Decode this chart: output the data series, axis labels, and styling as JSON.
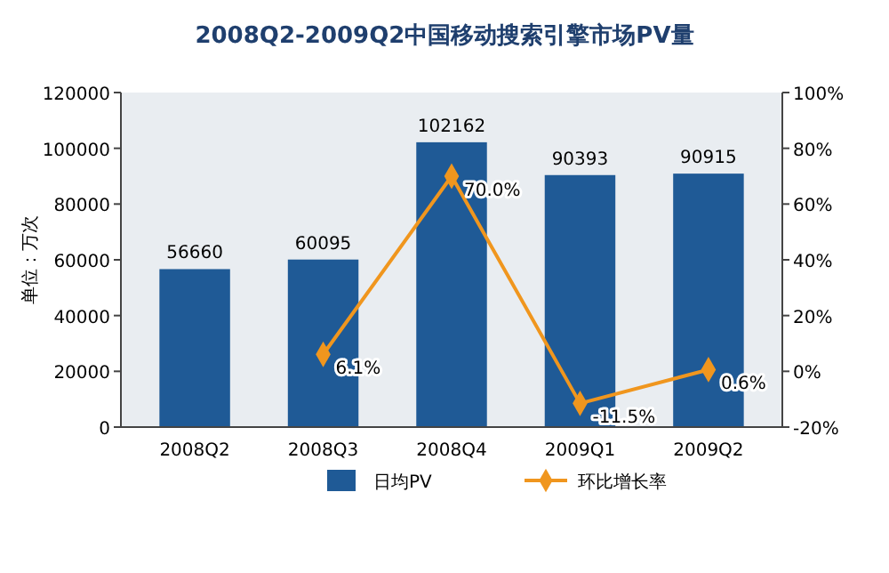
{
  "chart_data": {
    "type": "bar",
    "title": "2008Q2-2009Q2中国移动搜索引擎市场PV量",
    "ylabel": "单位：万次",
    "categories": [
      "2008Q2",
      "2008Q3",
      "2008Q4",
      "2009Q1",
      "2009Q2"
    ],
    "series": [
      {
        "name": "日均PV",
        "color": "#1f5a96",
        "values": [
          56660,
          60095,
          102162,
          90393,
          90915
        ],
        "value_labels": [
          "56660",
          "60095",
          "102162",
          "90393",
          "90915"
        ]
      },
      {
        "name": "环比增长率",
        "type": "line",
        "axis": "y2",
        "color": "#f0961e",
        "marker": "diamond",
        "values": [
          null,
          6.1,
          70.0,
          -11.5,
          0.6
        ],
        "value_labels": [
          null,
          "6.1%",
          "70.0%",
          "-11.5%",
          "0.6%"
        ]
      }
    ],
    "ylim": [
      0,
      120000
    ],
    "yticks": [
      0,
      20000,
      40000,
      60000,
      80000,
      100000,
      120000
    ],
    "y2lim": [
      -20,
      100
    ],
    "y2ticks": [
      {
        "value": -20,
        "label": "-20%"
      },
      {
        "value": 0,
        "label": "0%"
      },
      {
        "value": 20,
        "label": "20%"
      },
      {
        "value": 40,
        "label": "40%"
      },
      {
        "value": 60,
        "label": "60%"
      },
      {
        "value": 80,
        "label": "80%"
      },
      {
        "value": 100,
        "label": "100%"
      }
    ],
    "legend": "bottom"
  }
}
